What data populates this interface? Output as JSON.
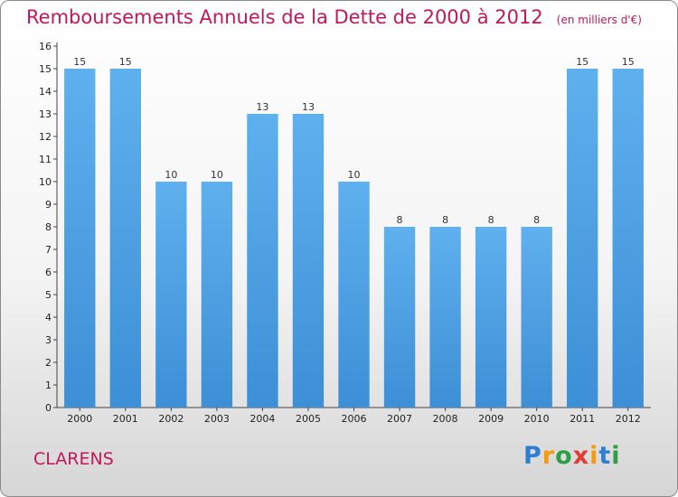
{
  "chart_data": {
    "type": "bar",
    "title": "Remboursements Annuels de la Dette de 2000 à 2012",
    "subtitle": "(en milliers d'€)",
    "categories": [
      "2000",
      "2001",
      "2002",
      "2003",
      "2004",
      "2005",
      "2006",
      "2007",
      "2008",
      "2009",
      "2010",
      "2011",
      "2012"
    ],
    "values": [
      15,
      15,
      10,
      10,
      13,
      13,
      10,
      8,
      8,
      8,
      8,
      15,
      15
    ],
    "ylim": [
      0,
      16
    ],
    "yticks": [
      0,
      1,
      2,
      3,
      4,
      5,
      6,
      7,
      8,
      9,
      10,
      11,
      12,
      13,
      14,
      15,
      16
    ],
    "grid": false,
    "bar_color": "#3d8fd6",
    "bar_color_light": "#5fb0ee"
  },
  "location": "CLARENS",
  "logo": {
    "letters": [
      "P",
      "r",
      "o",
      "x",
      "i",
      "t",
      "i"
    ],
    "colors": [
      "#2e7fcf",
      "#f39c12",
      "#2ea043",
      "#e53935",
      "#f39c12",
      "#2e7fcf",
      "#2ea043"
    ]
  }
}
